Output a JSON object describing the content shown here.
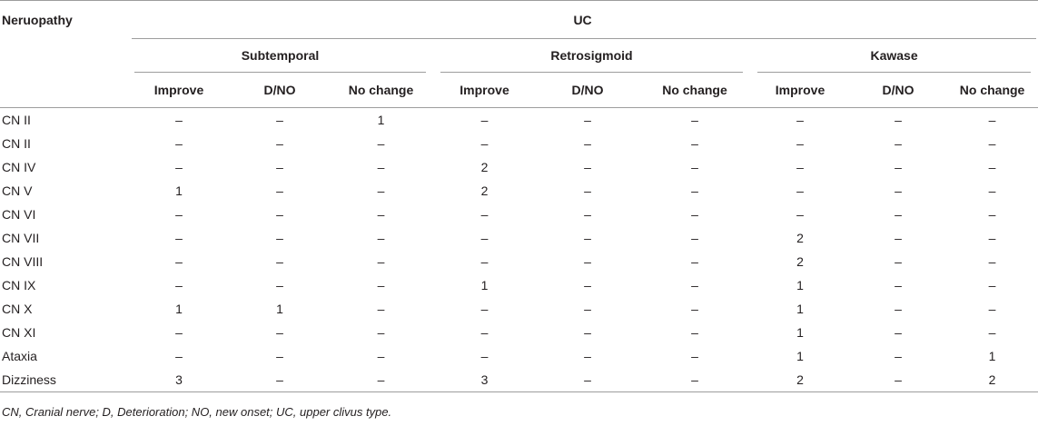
{
  "table": {
    "row_header": "Neruopathy",
    "super_header": "UC",
    "groups": [
      "Subtemporal",
      "Retrosigmoid",
      "Kawase"
    ],
    "subheaders": [
      "Improve",
      "D/NO",
      "No change"
    ],
    "rows": [
      {
        "label": "CN II",
        "values": [
          "–",
          "–",
          "1",
          "–",
          "–",
          "–",
          "–",
          "–",
          "–"
        ]
      },
      {
        "label": "CN II",
        "values": [
          "–",
          "–",
          "–",
          "–",
          "–",
          "–",
          "–",
          "–",
          "–"
        ]
      },
      {
        "label": "CN IV",
        "values": [
          "–",
          "–",
          "–",
          "2",
          "–",
          "–",
          "–",
          "–",
          "–"
        ]
      },
      {
        "label": "CN V",
        "values": [
          "1",
          "–",
          "–",
          "2",
          "–",
          "–",
          "–",
          "–",
          "–"
        ]
      },
      {
        "label": "CN VI",
        "values": [
          "–",
          "–",
          "–",
          "–",
          "–",
          "–",
          "–",
          "–",
          "–"
        ]
      },
      {
        "label": "CN VII",
        "values": [
          "–",
          "–",
          "–",
          "–",
          "–",
          "–",
          "2",
          "–",
          "–"
        ]
      },
      {
        "label": "CN VIII",
        "values": [
          "–",
          "–",
          "–",
          "–",
          "–",
          "–",
          "2",
          "–",
          "–"
        ]
      },
      {
        "label": "CN IX",
        "values": [
          "–",
          "–",
          "–",
          "1",
          "–",
          "–",
          "1",
          "–",
          "–"
        ]
      },
      {
        "label": "CN X",
        "values": [
          "1",
          "1",
          "–",
          "–",
          "–",
          "–",
          "1",
          "–",
          "–"
        ]
      },
      {
        "label": "CN XI",
        "values": [
          "–",
          "–",
          "–",
          "–",
          "–",
          "–",
          "1",
          "–",
          "–"
        ]
      },
      {
        "label": "Ataxia",
        "values": [
          "–",
          "–",
          "–",
          "–",
          "–",
          "–",
          "1",
          "–",
          "1"
        ]
      },
      {
        "label": "Dizziness",
        "values": [
          "3",
          "–",
          "–",
          "3",
          "–",
          "–",
          "2",
          "–",
          "2"
        ]
      }
    ]
  },
  "footnote": "CN, Cranial nerve; D, Deterioration; NO, new onset; UC, upper clivus type."
}
